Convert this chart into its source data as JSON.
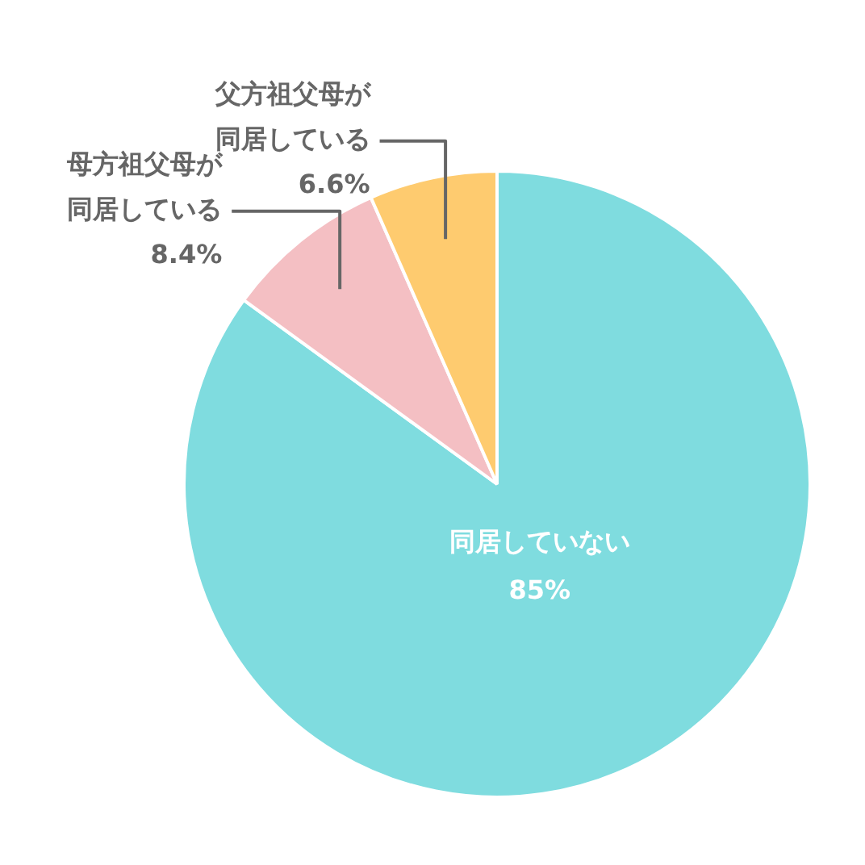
{
  "chart_data": {
    "type": "pie",
    "categories": [
      "同居していない",
      "母方祖父母が同居している",
      "父方祖父母が同居している"
    ],
    "values": [
      85,
      8.4,
      6.6
    ],
    "value_labels": [
      "85%",
      "8.4%",
      "6.6%"
    ],
    "colors": [
      "#7fdcdf",
      "#f4bfc3",
      "#fecb6f"
    ],
    "legend": false
  }
}
